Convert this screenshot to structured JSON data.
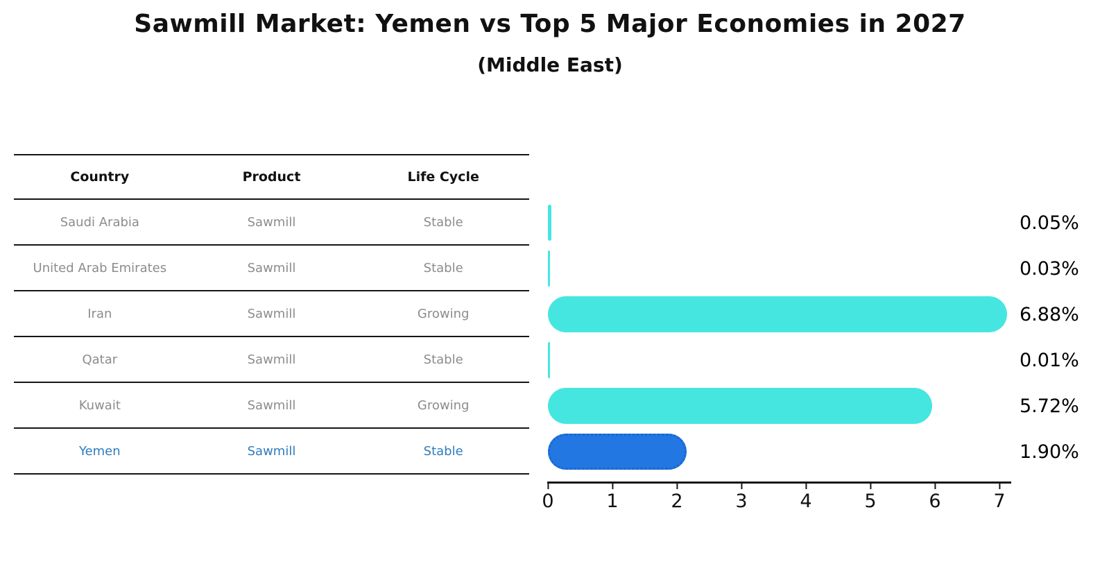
{
  "header": {
    "title": "Sawmill Market: Yemen vs Top 5 Major Economies in 2027",
    "subtitle": "(Middle East)"
  },
  "table": {
    "columns": [
      "Country",
      "Product",
      "Life Cycle"
    ],
    "rows": [
      {
        "country": "Saudi Arabia",
        "product": "Sawmill",
        "life_cycle": "Stable",
        "highlighted": false
      },
      {
        "country": "United Arab Emirates",
        "product": "Sawmill",
        "life_cycle": "Stable",
        "highlighted": false
      },
      {
        "country": "Iran",
        "product": "Sawmill",
        "life_cycle": "Growing",
        "highlighted": false
      },
      {
        "country": "Qatar",
        "product": "Sawmill",
        "life_cycle": "Stable",
        "highlighted": false
      },
      {
        "country": "Kuwait",
        "product": "Sawmill",
        "life_cycle": "Growing",
        "highlighted": false
      },
      {
        "country": "Yemen",
        "product": "Sawmill",
        "life_cycle": "Stable",
        "highlighted": true
      }
    ]
  },
  "chart_data": {
    "type": "bar",
    "orientation": "horizontal",
    "title": "Sawmill Market: Yemen vs Top 5 Major Economies in 2027",
    "subtitle": "(Middle East)",
    "categories": [
      "Saudi Arabia",
      "United Arab Emirates",
      "Iran",
      "Qatar",
      "Kuwait",
      "Yemen"
    ],
    "values": [
      0.05,
      0.03,
      6.88,
      0.01,
      5.72,
      1.9
    ],
    "value_labels": [
      "0.05%",
      "0.03%",
      "6.88%",
      "0.01%",
      "5.72%",
      "1.90%"
    ],
    "unit": "%",
    "xlabel": "",
    "ylabel": "",
    "xlim": [
      0,
      7.2
    ],
    "xtick_labels": [
      "0",
      "1",
      "2",
      "3",
      "4",
      "5",
      "6",
      "7"
    ],
    "grid": false,
    "legend": null,
    "highlight_index": 5,
    "bar_color": "#46E6E0",
    "highlight_bar_color": "#2277E2",
    "highlight_text_color": "#2E7CBF"
  }
}
